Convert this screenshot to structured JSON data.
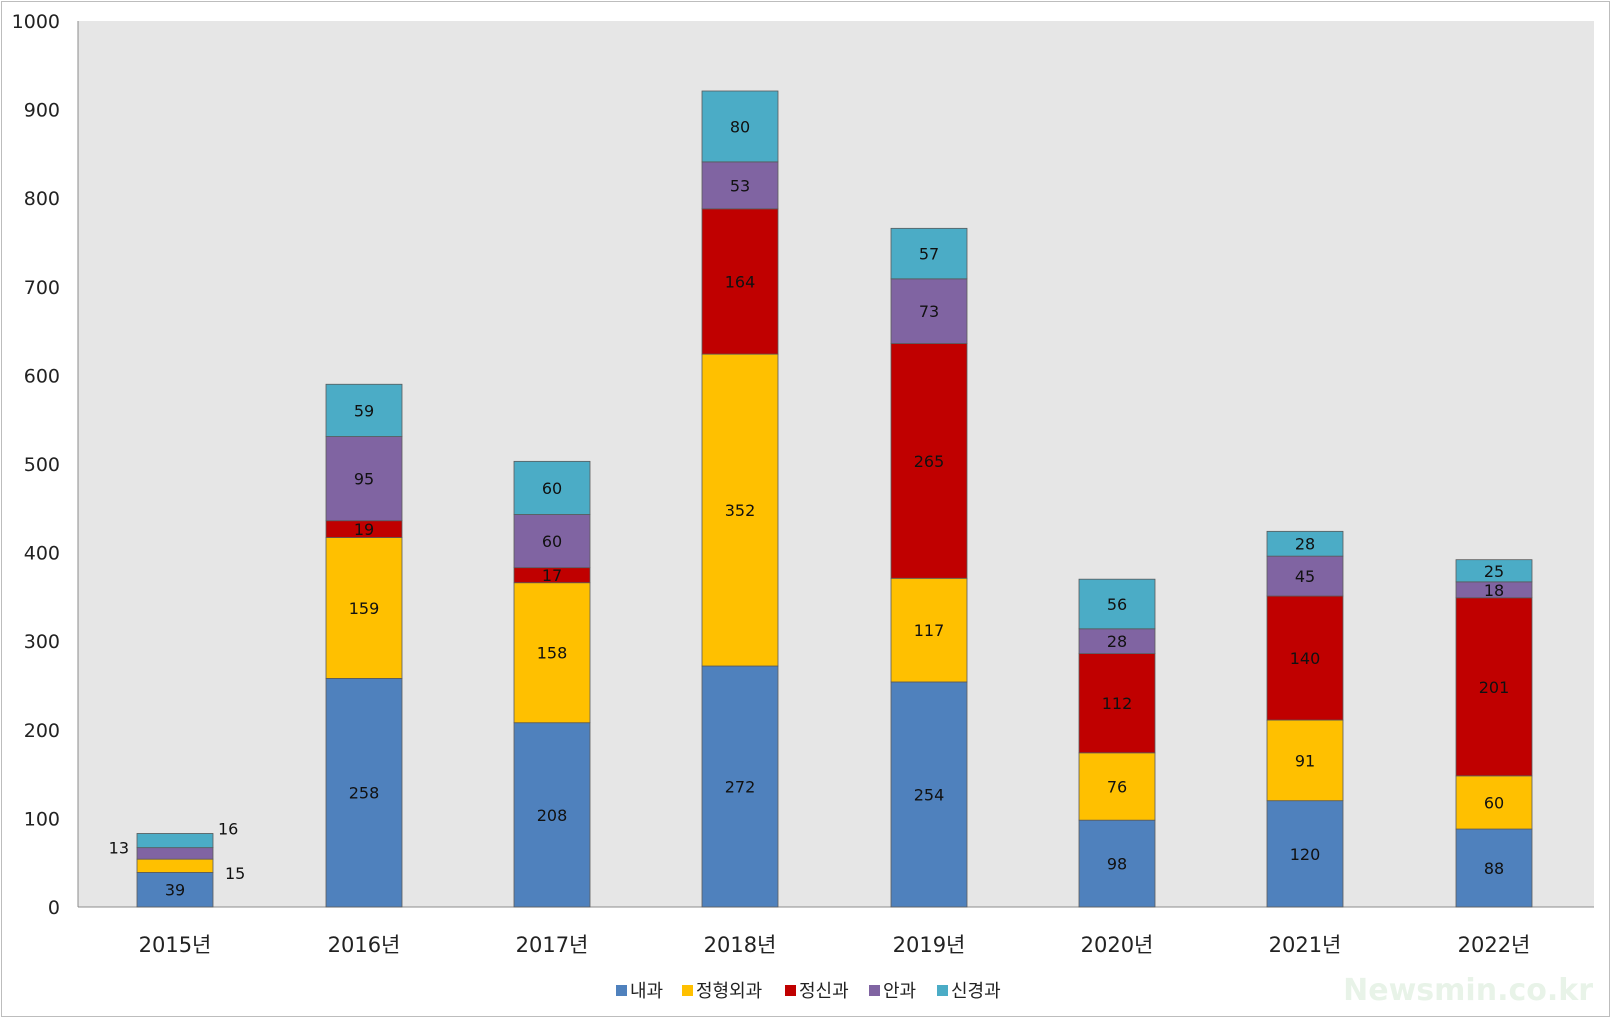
{
  "chart_data": {
    "type": "bar",
    "stacked": true,
    "title": "",
    "xlabel": "",
    "ylabel": "",
    "ylim": [
      0,
      1000
    ],
    "yticks": [
      0,
      100,
      200,
      300,
      400,
      500,
      600,
      700,
      800,
      900,
      1000
    ],
    "categories": [
      "2015년",
      "2016년",
      "2017년",
      "2018년",
      "2019년",
      "2020년",
      "2021년",
      "2022년"
    ],
    "series": [
      {
        "name": "내과",
        "color": "#4F81BD",
        "values": [
          39,
          258,
          208,
          272,
          254,
          98,
          120,
          88
        ]
      },
      {
        "name": "정형외과",
        "color": "#FFC000",
        "values": [
          15,
          159,
          158,
          352,
          117,
          76,
          91,
          60
        ]
      },
      {
        "name": "정신과",
        "color": "#C00000",
        "values": [
          0,
          19,
          17,
          164,
          265,
          112,
          140,
          201
        ]
      },
      {
        "name": "안과",
        "color": "#8064A2",
        "values": [
          13,
          95,
          60,
          53,
          73,
          28,
          45,
          18
        ]
      },
      {
        "name": "신경과",
        "color": "#4BACC6",
        "values": [
          16,
          59,
          60,
          80,
          57,
          56,
          28,
          25
        ]
      }
    ],
    "grid": false,
    "plot_background": "#E6E6E6",
    "legend_position": "bottom"
  },
  "watermark": "Newsmin.co.kr"
}
